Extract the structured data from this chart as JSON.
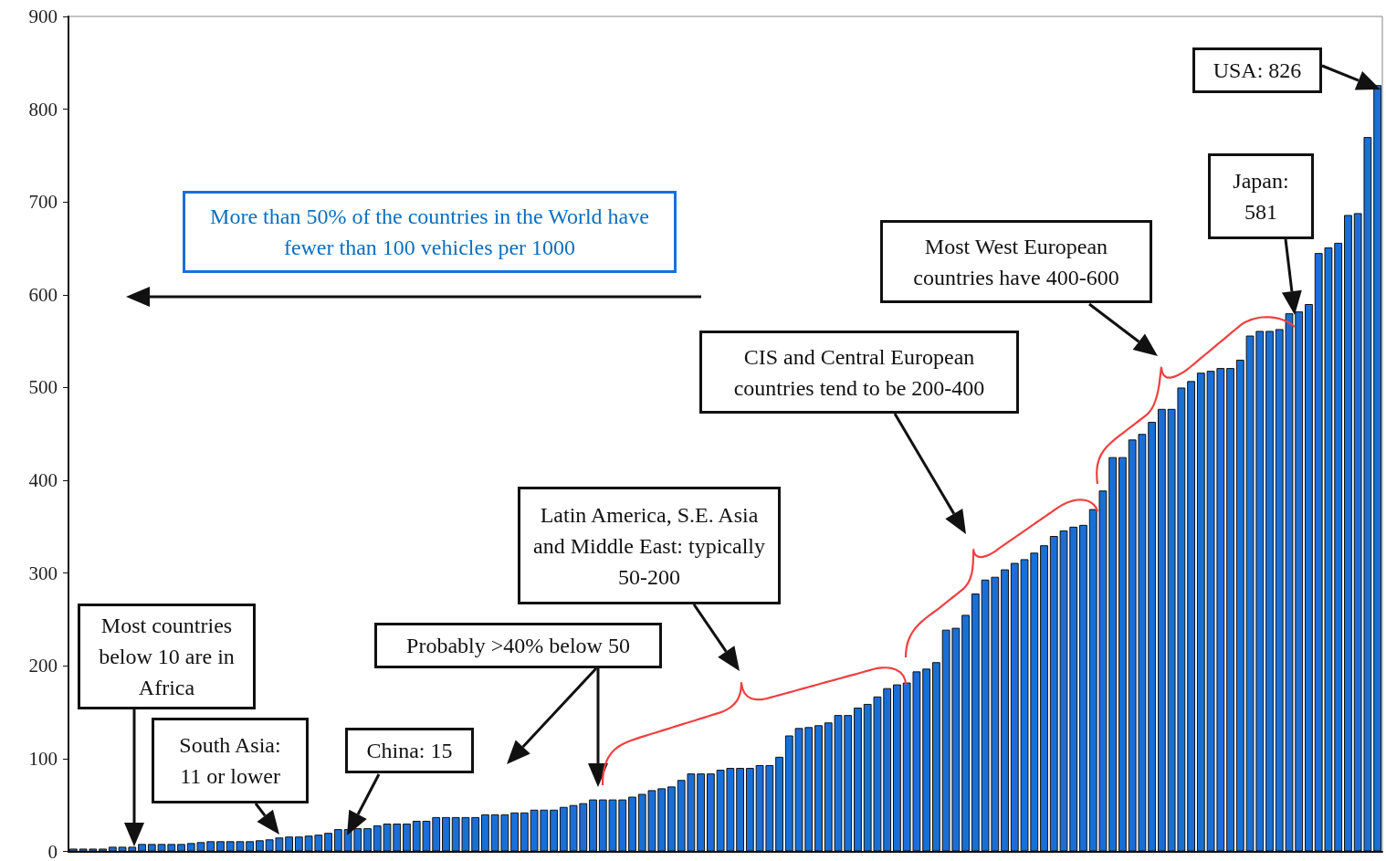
{
  "chart_data": {
    "type": "bar",
    "categories": [
      null,
      null,
      null,
      null,
      null,
      null,
      null,
      null,
      null,
      null,
      null,
      null,
      null,
      null,
      null,
      null,
      null,
      null,
      null,
      null,
      null,
      null,
      null,
      null,
      null,
      null,
      null,
      null,
      null,
      null,
      null,
      null,
      null,
      null,
      null,
      null,
      null,
      null,
      null,
      null,
      null,
      null,
      null,
      null,
      null,
      null,
      null,
      null,
      null,
      null,
      null,
      null,
      null,
      null,
      null,
      null,
      null,
      null,
      null,
      null,
      null,
      null,
      null,
      null,
      null,
      null,
      null,
      null,
      null,
      null,
      null,
      null,
      null,
      null,
      null,
      null,
      null,
      null,
      null,
      null,
      null,
      null,
      null,
      null,
      null,
      null,
      null,
      null,
      null,
      null,
      null,
      null,
      null,
      null,
      null,
      null,
      null,
      null,
      null,
      null,
      null,
      null,
      null,
      null,
      null,
      null,
      null,
      null,
      null,
      null,
      null,
      null,
      null,
      null,
      null,
      null,
      null,
      null,
      null,
      null,
      null,
      null,
      null,
      null,
      null,
      null,
      null,
      null,
      null,
      null,
      null,
      null,
      null,
      null
    ],
    "values": [
      3,
      3,
      3,
      3,
      5,
      5,
      5,
      8,
      8,
      8,
      8,
      8,
      9,
      10,
      11,
      11,
      11,
      11,
      11,
      12,
      13,
      15,
      16,
      16,
      17,
      18,
      20,
      24,
      24,
      25,
      25,
      28,
      30,
      30,
      30,
      33,
      33,
      37,
      37,
      37,
      37,
      37,
      40,
      40,
      40,
      42,
      42,
      45,
      45,
      45,
      48,
      50,
      52,
      56,
      56,
      56,
      56,
      59,
      62,
      66,
      68,
      70,
      77,
      84,
      84,
      84,
      88,
      90,
      90,
      90,
      93,
      93,
      102,
      125,
      133,
      134,
      136,
      139,
      147,
      147,
      155,
      159,
      167,
      176,
      180,
      182,
      194,
      197,
      204,
      239,
      241,
      255,
      278,
      293,
      296,
      304,
      311,
      315,
      322,
      330,
      340,
      346,
      350,
      352,
      369,
      389,
      425,
      425,
      444,
      450,
      463,
      477,
      477,
      500,
      507,
      516,
      518,
      521,
      521,
      530,
      556,
      561,
      561,
      563,
      580,
      582,
      590,
      645,
      651,
      656,
      686,
      688,
      770,
      826
    ],
    "color": "#1a6fd6",
    "ylim": [
      0,
      900
    ],
    "yticks": [
      0,
      100,
      200,
      300,
      400,
      500,
      600,
      700,
      800,
      900
    ],
    "annotations": [
      "More than 50% of the countries in the World have fewer than 100 vehicles per 1000",
      "USA: 826",
      "Japan: 581",
      "Most West European countries have 400-600",
      "CIS and Central European countries tend to be 200-400",
      "Latin America, S.E. Asia and Middle East: typically 50-200",
      "Probably >40% below 50",
      "Most countries below 10 are in Africa",
      "South Asia: 11 or lower",
      "China: 15"
    ]
  }
}
